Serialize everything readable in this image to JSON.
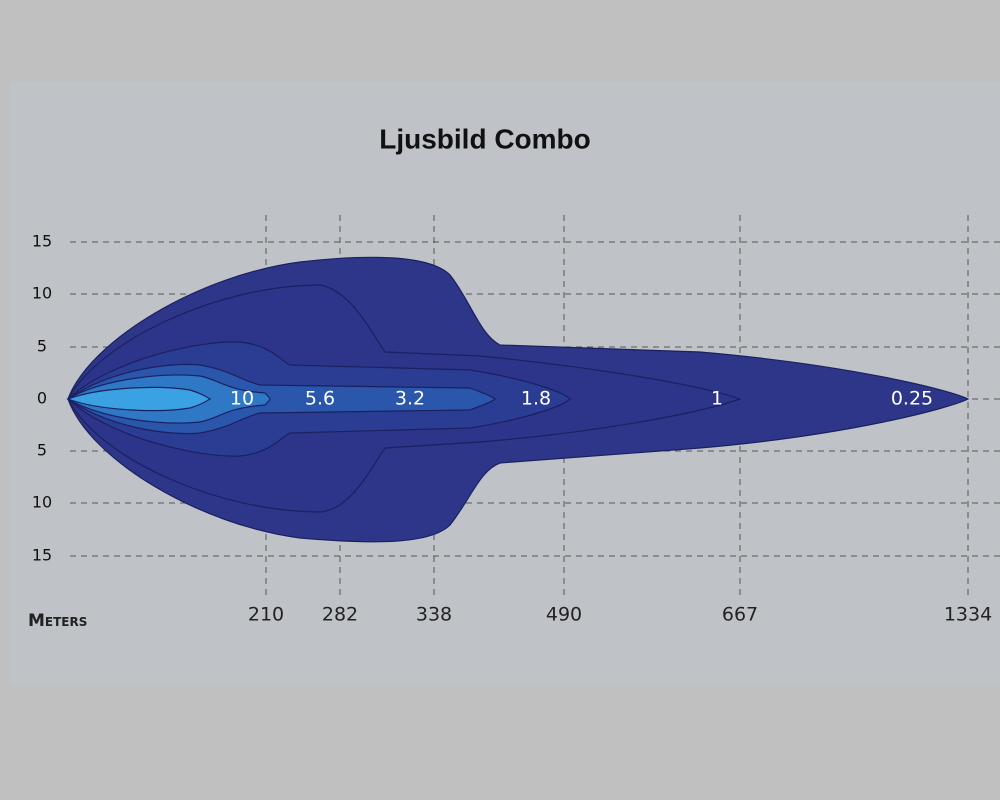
{
  "title": "Ljusbild Combo",
  "y_axis": {
    "labels": [
      "15",
      "10",
      "5",
      "0",
      "5",
      "10",
      "15"
    ]
  },
  "x_axis": {
    "label": "Meters",
    "labels": [
      "210",
      "282",
      "338",
      "490",
      "667",
      "1334"
    ]
  },
  "zones": [
    "10",
    "5.6",
    "3.2",
    "1.8",
    "1",
    "0.25"
  ]
}
